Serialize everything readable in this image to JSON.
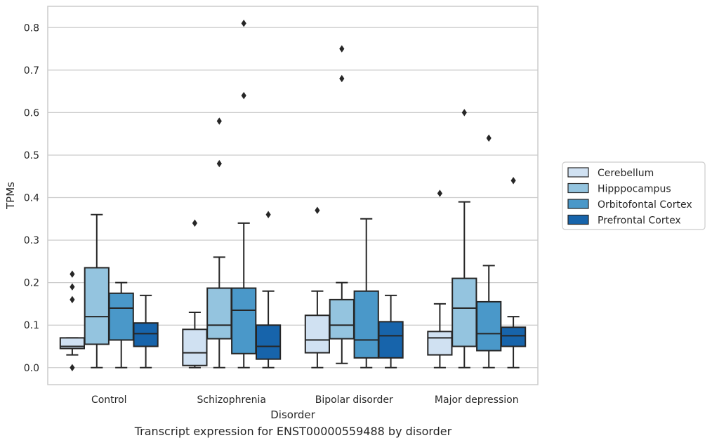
{
  "caption": "Transcript expression for ENST00000559488 by disorder",
  "chart_data": {
    "type": "box",
    "xlabel": "Disorder",
    "ylabel": "TPMs",
    "ylim": [
      -0.04,
      0.85
    ],
    "yticks": [
      0.0,
      0.1,
      0.2,
      0.3,
      0.4,
      0.5,
      0.6,
      0.7,
      0.8
    ],
    "ytick_labels": [
      "0.0",
      "0.1",
      "0.2",
      "0.3",
      "0.4",
      "0.5",
      "0.6",
      "0.7",
      "0.8"
    ],
    "grid": true,
    "legend_position": "right",
    "categories": [
      "Control",
      "Schizophrenia",
      "Bipolar disorder",
      "Major depression"
    ],
    "series": [
      {
        "name": "Cerebellum",
        "color": "#d0e1f2",
        "boxes": [
          {
            "whisker_low": 0.03,
            "q1": 0.045,
            "median": 0.05,
            "q3": 0.07,
            "whisker_high": 0.07,
            "outliers": [
              0.0,
              0.16,
              0.19,
              0.22
            ]
          },
          {
            "whisker_low": 0.0,
            "q1": 0.005,
            "median": 0.035,
            "q3": 0.09,
            "whisker_high": 0.13,
            "outliers": [
              0.34
            ]
          },
          {
            "whisker_low": 0.0,
            "q1": 0.035,
            "median": 0.065,
            "q3": 0.123,
            "whisker_high": 0.18,
            "outliers": [
              0.37
            ]
          },
          {
            "whisker_low": 0.0,
            "q1": 0.03,
            "median": 0.07,
            "q3": 0.085,
            "whisker_high": 0.15,
            "outliers": [
              0.41
            ]
          }
        ]
      },
      {
        "name": "Hipppocampus",
        "color": "#94c4df",
        "boxes": [
          {
            "whisker_low": 0.0,
            "q1": 0.055,
            "median": 0.12,
            "q3": 0.235,
            "whisker_high": 0.36,
            "outliers": []
          },
          {
            "whisker_low": 0.0,
            "q1": 0.068,
            "median": 0.1,
            "q3": 0.187,
            "whisker_high": 0.26,
            "outliers": [
              0.48,
              0.58
            ]
          },
          {
            "whisker_low": 0.01,
            "q1": 0.068,
            "median": 0.1,
            "q3": 0.16,
            "whisker_high": 0.2,
            "outliers": [
              0.68,
              0.75
            ]
          },
          {
            "whisker_low": 0.0,
            "q1": 0.05,
            "median": 0.14,
            "q3": 0.21,
            "whisker_high": 0.39,
            "outliers": [
              0.6
            ]
          }
        ]
      },
      {
        "name": "Orbitofontal Cortex",
        "color": "#4a98c9",
        "boxes": [
          {
            "whisker_low": 0.0,
            "q1": 0.065,
            "median": 0.14,
            "q3": 0.175,
            "whisker_high": 0.2,
            "outliers": []
          },
          {
            "whisker_low": 0.0,
            "q1": 0.033,
            "median": 0.135,
            "q3": 0.187,
            "whisker_high": 0.34,
            "outliers": [
              0.64,
              0.81
            ]
          },
          {
            "whisker_low": 0.0,
            "q1": 0.023,
            "median": 0.065,
            "q3": 0.18,
            "whisker_high": 0.35,
            "outliers": []
          },
          {
            "whisker_low": 0.0,
            "q1": 0.04,
            "median": 0.08,
            "q3": 0.155,
            "whisker_high": 0.24,
            "outliers": [
              0.54
            ]
          }
        ]
      },
      {
        "name": "Prefrontal Cortex",
        "color": "#1764ab",
        "boxes": [
          {
            "whisker_low": 0.0,
            "q1": 0.05,
            "median": 0.08,
            "q3": 0.105,
            "whisker_high": 0.17,
            "outliers": []
          },
          {
            "whisker_low": 0.0,
            "q1": 0.02,
            "median": 0.05,
            "q3": 0.1,
            "whisker_high": 0.18,
            "outliers": [
              0.36
            ]
          },
          {
            "whisker_low": 0.0,
            "q1": 0.023,
            "median": 0.075,
            "q3": 0.108,
            "whisker_high": 0.17,
            "outliers": []
          },
          {
            "whisker_low": 0.0,
            "q1": 0.05,
            "median": 0.075,
            "q3": 0.095,
            "whisker_high": 0.12,
            "outliers": [
              0.44
            ]
          }
        ]
      }
    ]
  }
}
